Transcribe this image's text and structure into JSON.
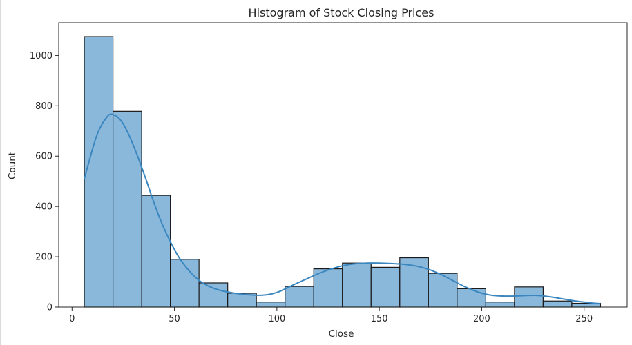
{
  "chart_data": {
    "type": "bar",
    "title": "Histogram of Stock Closing Prices",
    "xlabel": "Close",
    "ylabel": "Count",
    "xlim": [
      -6.5,
      271
    ],
    "ylim": [
      0,
      1130
    ],
    "x_ticks": [
      0,
      50,
      100,
      150,
      200,
      250
    ],
    "y_ticks": [
      0,
      200,
      400,
      600,
      800,
      1000
    ],
    "bins": [
      {
        "x0": 6.0,
        "x1": 20.0,
        "count": 1075
      },
      {
        "x0": 20.0,
        "x1": 34.0,
        "count": 778
      },
      {
        "x0": 34.0,
        "x1": 48.0,
        "count": 444
      },
      {
        "x0": 48.0,
        "x1": 62.0,
        "count": 190
      },
      {
        "x0": 62.0,
        "x1": 76.0,
        "count": 96
      },
      {
        "x0": 76.0,
        "x1": 90.0,
        "count": 55
      },
      {
        "x0": 90.0,
        "x1": 104.0,
        "count": 20
      },
      {
        "x0": 104.0,
        "x1": 118.0,
        "count": 82
      },
      {
        "x0": 118.0,
        "x1": 132.0,
        "count": 152
      },
      {
        "x0": 132.0,
        "x1": 146.0,
        "count": 175
      },
      {
        "x0": 146.0,
        "x1": 160.0,
        "count": 158
      },
      {
        "x0": 160.0,
        "x1": 174.0,
        "count": 196
      },
      {
        "x0": 174.0,
        "x1": 188.0,
        "count": 134
      },
      {
        "x0": 188.0,
        "x1": 202.0,
        "count": 73
      },
      {
        "x0": 202.0,
        "x1": 216.0,
        "count": 20
      },
      {
        "x0": 216.0,
        "x1": 230.0,
        "count": 80
      },
      {
        "x0": 230.0,
        "x1": 244.0,
        "count": 24
      },
      {
        "x0": 244.0,
        "x1": 258.0,
        "count": 15
      }
    ],
    "kde": {
      "x": [
        6,
        12,
        17,
        20,
        24,
        28,
        32,
        36,
        40,
        44,
        48,
        52,
        56,
        60,
        64,
        70,
        76,
        82,
        88,
        92,
        96,
        100,
        104,
        108,
        114,
        120,
        126,
        132,
        138,
        144,
        150,
        156,
        162,
        168,
        174,
        180,
        186,
        192,
        198,
        204,
        210,
        216,
        222,
        228,
        234,
        240,
        246,
        252,
        258
      ],
      "y": [
        510,
        680,
        755,
        765,
        740,
        680,
        600,
        510,
        415,
        330,
        260,
        200,
        155,
        120,
        95,
        72,
        60,
        52,
        48,
        47,
        50,
        58,
        72,
        88,
        110,
        132,
        150,
        164,
        172,
        175,
        175,
        173,
        170,
        163,
        150,
        130,
        105,
        80,
        60,
        48,
        44,
        44,
        46,
        46,
        40,
        32,
        24,
        18,
        13
      ]
    },
    "bar_color": "#8ab8db",
    "bar_edge_color": "#1a1a1a",
    "line_color": "#3a86bf",
    "grid": false
  }
}
